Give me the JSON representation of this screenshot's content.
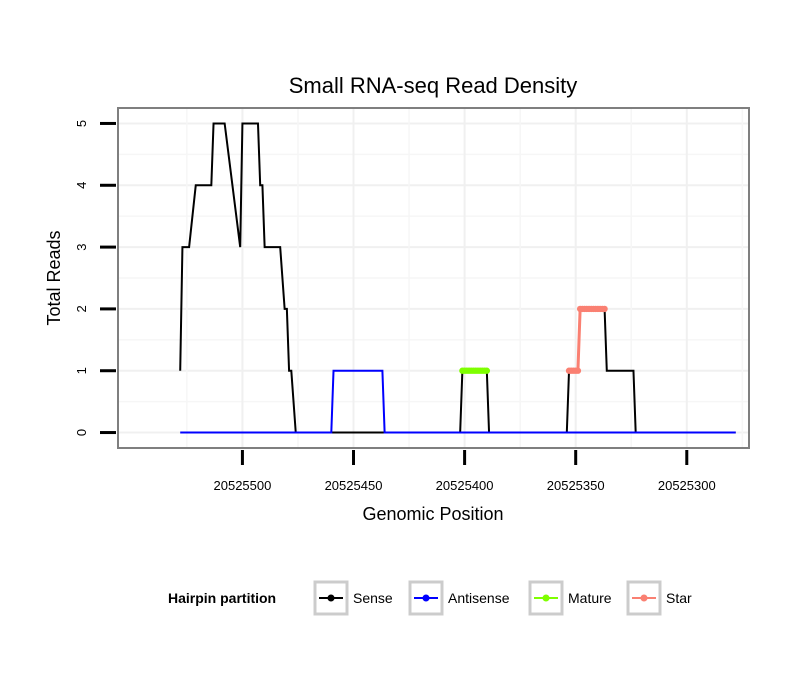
{
  "chart_data": {
    "type": "line",
    "title": "Small RNA-seq Read Density",
    "xlabel": "Genomic Position",
    "ylabel": "Total Reads",
    "x_reversed": true,
    "xlim": [
      20525556,
      20525272
    ],
    "ylim": [
      -0.25,
      5.25
    ],
    "x_ticks": [
      20525500,
      20525450,
      20525400,
      20525350,
      20525300
    ],
    "x_tick_labels": [
      "20525500",
      "20525450",
      "20525400",
      "20525350",
      "20525300"
    ],
    "y_ticks": [
      0,
      1,
      2,
      3,
      4,
      5
    ],
    "y_tick_labels": [
      "0",
      "1",
      "2",
      "3",
      "4",
      "5"
    ],
    "grid": true,
    "legend": {
      "title": "Hairpin partition",
      "position": "bottom",
      "entries": [
        {
          "label": "Sense",
          "color": "#000000"
        },
        {
          "label": "Antisense",
          "color": "#0000ff"
        },
        {
          "label": "Mature",
          "color": "#7fff00"
        },
        {
          "label": "Star",
          "color": "#fa8072"
        }
      ]
    },
    "series": [
      {
        "name": "Sense",
        "color": "#000000",
        "x": [
          20525528,
          20525527,
          20525524,
          20525521,
          20525514,
          20525513,
          20525508,
          20525501,
          20525500,
          20525497,
          20525493,
          20525492,
          20525491,
          20525490,
          20525483,
          20525481,
          20525480,
          20525479,
          20525478,
          20525476,
          20525462,
          20525442,
          20525439,
          20525402,
          20525401,
          20525390,
          20525389,
          20525354,
          20525353,
          20525349,
          20525348,
          20525337,
          20525336,
          20525324,
          20525323,
          20525278
        ],
        "y": [
          1,
          3,
          3,
          4,
          4,
          5,
          5,
          3,
          5,
          5,
          5,
          4,
          4,
          3,
          3,
          2,
          2,
          1,
          1,
          0,
          0,
          0,
          0,
          0,
          1,
          1,
          0,
          0,
          1,
          1,
          2,
          2,
          1,
          1,
          0,
          0
        ]
      },
      {
        "name": "Antisense",
        "color": "#0000ff",
        "x": [
          20525528,
          20525460,
          20525459,
          20525437,
          20525436,
          20525278
        ],
        "y": [
          0,
          0,
          1,
          1,
          0,
          0
        ]
      },
      {
        "name": "Mature",
        "color": "#7fff00",
        "x": [
          20525401,
          20525400,
          20525399,
          20525398,
          20525397,
          20525396,
          20525395,
          20525394,
          20525393,
          20525392,
          20525391,
          20525390
        ],
        "y": [
          1,
          1,
          1,
          1,
          1,
          1,
          1,
          1,
          1,
          1,
          1,
          1
        ]
      },
      {
        "name": "Star",
        "color": "#fa8072",
        "x": [
          20525353,
          20525352,
          20525351,
          20525350,
          20525349,
          20525348,
          20525347,
          20525346,
          20525345,
          20525344,
          20525343,
          20525342,
          20525341,
          20525340,
          20525339,
          20525338,
          20525337
        ],
        "y": [
          1,
          1,
          1,
          1,
          1,
          2,
          2,
          2,
          2,
          2,
          2,
          2,
          2,
          2,
          2,
          2,
          2
        ]
      }
    ]
  }
}
